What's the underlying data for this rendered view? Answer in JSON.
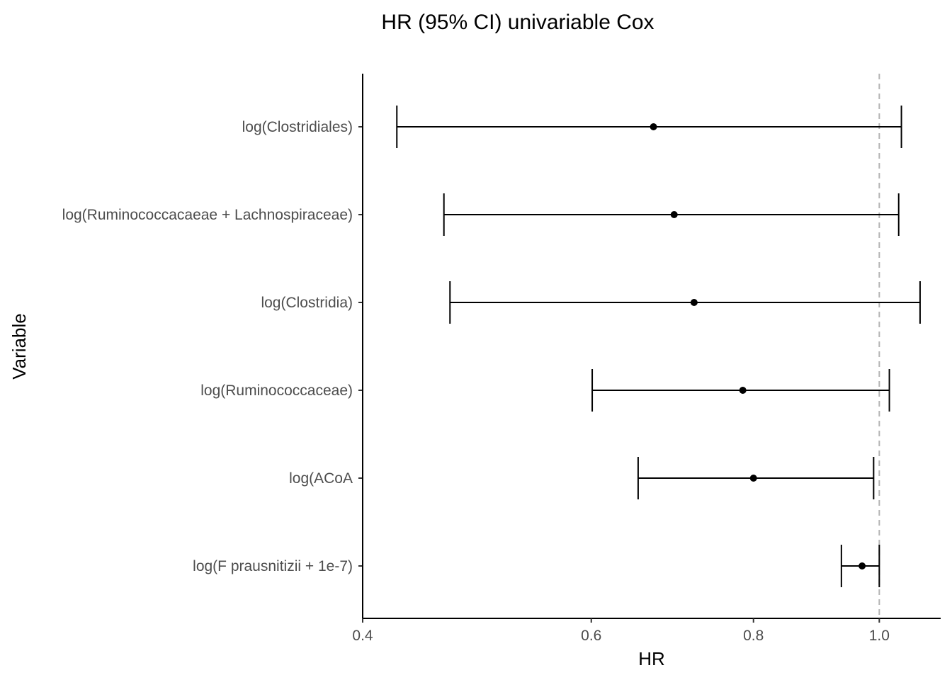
{
  "chart_data": {
    "type": "scatter",
    "subtype": "forest-plot",
    "title": "HR (95% CI) univariable Cox",
    "xlabel": "HR",
    "ylabel": "Variable",
    "x_scale": "log",
    "xlim": [
      0.4,
      1.115
    ],
    "x_ticks": [
      0.4,
      0.6,
      0.8,
      1.0
    ],
    "x_tick_labels": [
      "0.4",
      "0.6",
      "0.8",
      "1.0"
    ],
    "reference_line": 1.0,
    "grid": false,
    "rows": [
      {
        "label": "log(Clostridiales)",
        "hr": 0.67,
        "lower": 0.425,
        "upper": 1.04
      },
      {
        "label": "log(Ruminococcacaeae + Lachnospiraceae)",
        "hr": 0.695,
        "lower": 0.462,
        "upper": 1.035
      },
      {
        "label": "log(Clostridia)",
        "hr": 0.72,
        "lower": 0.467,
        "upper": 1.075
      },
      {
        "label": "log(Ruminococcaceae)",
        "hr": 0.785,
        "lower": 0.601,
        "upper": 1.018
      },
      {
        "label": "log(ACoA",
        "hr": 0.8,
        "lower": 0.652,
        "upper": 0.99
      },
      {
        "label": "log(F prausnitizii + 1e-7)",
        "hr": 0.97,
        "lower": 0.935,
        "upper": 1.0
      }
    ]
  },
  "colors": {
    "point": "#000000",
    "error_bar": "#000000",
    "reference_line": "#b3b3b3",
    "tick_label": "#4d4d4d"
  }
}
